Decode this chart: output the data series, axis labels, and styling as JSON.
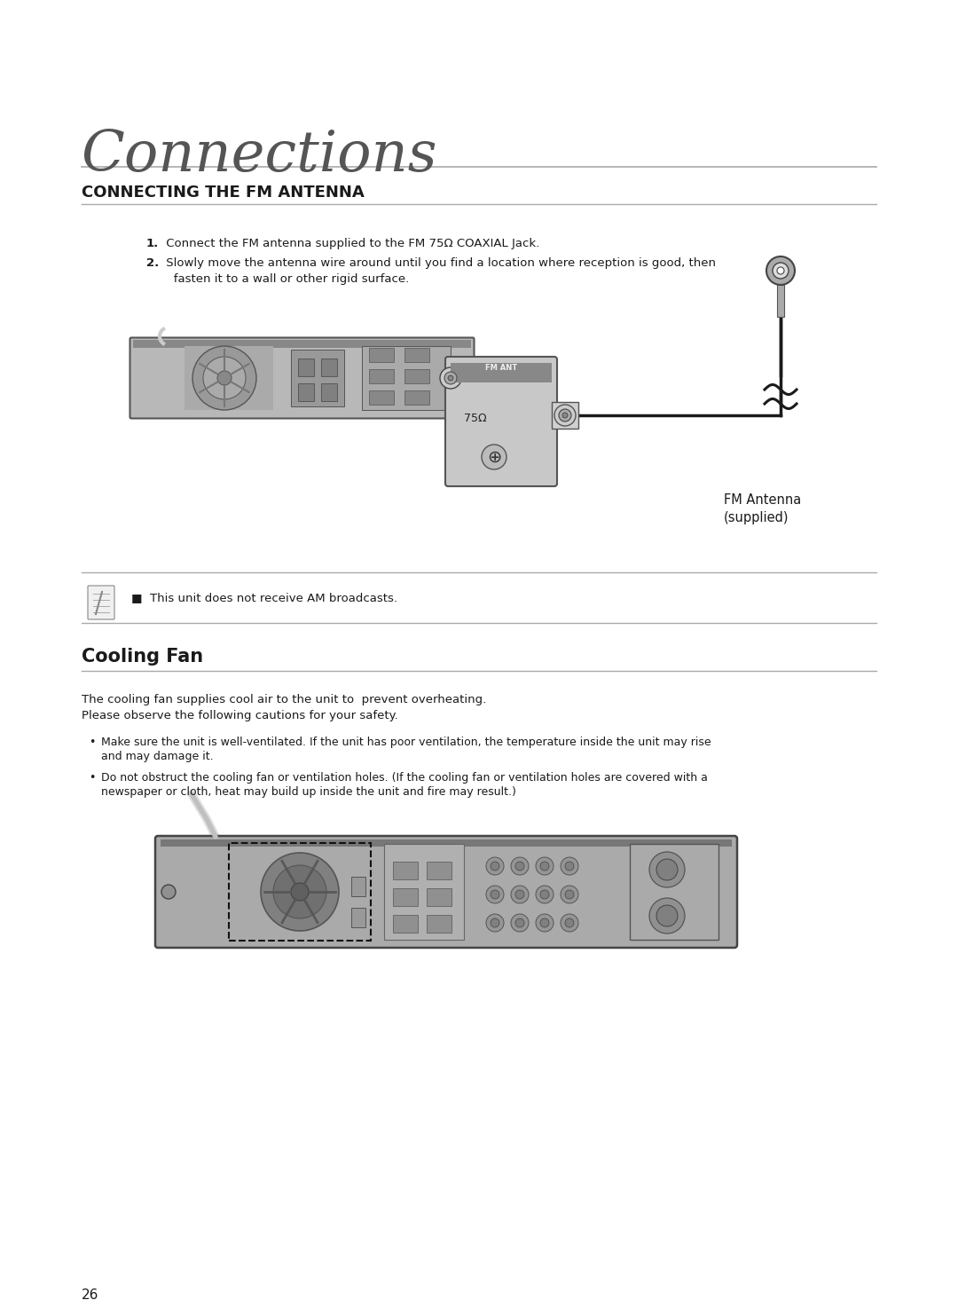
{
  "title": "Connections",
  "section1_title": "CONNECTING THE FM ANTENNA",
  "step1_num": "1.",
  "step1_text": " Connect the FM antenna supplied to the FM 75Ω COAXIAL Jack.",
  "step2_num": "2.",
  "step2_line1": " Slowly move the antenna wire around until you find a location where reception is good, then",
  "step2_line2": "   fasten it to a wall or other rigid surface.",
  "note_text": "■  This unit does not receive AM broadcasts.",
  "section2_title": "Cooling Fan",
  "cooling_para1": "The cooling fan supplies cool air to the unit to  prevent overheating.",
  "cooling_para2": "Please observe the following cautions for your safety.",
  "bullet1_line1": "Make sure the unit is well-ventilated. If the unit has poor ventilation, the temperature inside the unit may rise",
  "bullet1_line2": "and may damage it.",
  "bullet2_line1": "Do not obstruct the cooling fan or ventilation holes. (If the cooling fan or ventilation holes are covered with a",
  "bullet2_line2": "newspaper or cloth, heat may build up inside the unit and fire may result.)",
  "fm_label1": "FM Antenna",
  "fm_label2": "(supplied)",
  "page_number": "26",
  "bg_color": "#ffffff",
  "text_color": "#1a1a1a",
  "gray_line": "#aaaaaa"
}
